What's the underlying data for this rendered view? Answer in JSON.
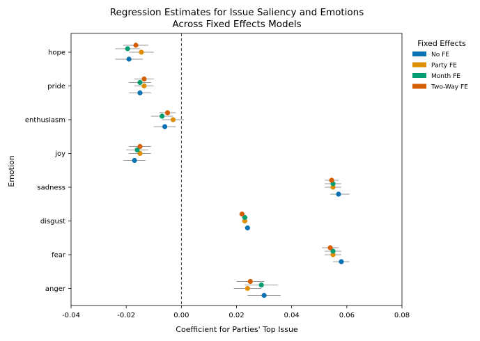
{
  "chart_data": {
    "type": "scatter",
    "title": "Regression Estimates for Issue Saliency and Emotions",
    "subtitle": "Across Fixed Effects Models",
    "xlabel": "Coefficient for Parties' Top Issue",
    "ylabel": "Emotion",
    "xlim": [
      -0.04,
      0.08
    ],
    "x_ticks": [
      "-0.04",
      "-0.02",
      "0.00",
      "0.02",
      "0.04",
      "0.06",
      "0.08"
    ],
    "x_tick_values": [
      -0.04,
      -0.02,
      0.0,
      0.02,
      0.04,
      0.06,
      0.08
    ],
    "reference_line": 0,
    "grid": false,
    "legend_position": "outside-right",
    "categories": [
      "hope",
      "pride",
      "enthusiasm",
      "joy",
      "sadness",
      "disgust",
      "fear",
      "anger"
    ],
    "legend_title": "Fixed Effects",
    "series": [
      {
        "name": "No FE",
        "color": "#0a72b2",
        "estimates": [
          -0.019,
          -0.015,
          -0.006,
          -0.017,
          0.057,
          0.024,
          0.058,
          0.03
        ],
        "ci_low": [
          -0.024,
          -0.019,
          -0.01,
          -0.021,
          0.054,
          0.023,
          0.055,
          0.024
        ],
        "ci_high": [
          -0.014,
          -0.011,
          -0.002,
          -0.013,
          0.061,
          0.025,
          0.061,
          0.036
        ]
      },
      {
        "name": "Party FE",
        "color": "#de8f05",
        "estimates": [
          -0.0145,
          -0.0135,
          -0.003,
          -0.015,
          0.055,
          0.023,
          0.055,
          0.024
        ],
        "ci_low": [
          -0.019,
          -0.017,
          -0.007,
          -0.019,
          0.052,
          0.022,
          0.052,
          0.019
        ],
        "ci_high": [
          -0.01,
          -0.01,
          0.001,
          -0.011,
          0.058,
          0.024,
          0.058,
          0.029
        ]
      },
      {
        "name": "Month FE",
        "color": "#029e73",
        "estimates": [
          -0.0195,
          -0.015,
          -0.007,
          -0.016,
          0.055,
          0.023,
          0.055,
          0.029
        ],
        "ci_low": [
          -0.024,
          -0.019,
          -0.011,
          -0.02,
          0.052,
          0.022,
          0.052,
          0.023
        ],
        "ci_high": [
          -0.015,
          -0.011,
          -0.003,
          -0.012,
          0.058,
          0.024,
          0.058,
          0.035
        ]
      },
      {
        "name": "Two-Way FE",
        "color": "#d55e00",
        "estimates": [
          -0.0165,
          -0.0135,
          -0.005,
          -0.015,
          0.0545,
          0.022,
          0.054,
          0.025
        ],
        "ci_low": [
          -0.021,
          -0.017,
          -0.008,
          -0.019,
          0.052,
          0.021,
          0.051,
          0.02
        ],
        "ci_high": [
          -0.012,
          -0.01,
          -0.002,
          -0.011,
          0.057,
          0.023,
          0.057,
          0.03
        ]
      }
    ]
  }
}
